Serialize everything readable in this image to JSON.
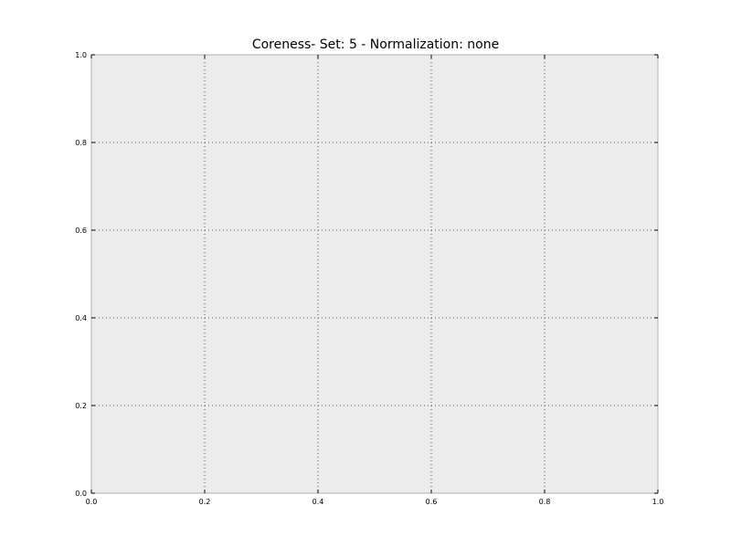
{
  "chart_data": {
    "type": "line",
    "title": "Coreness- Set: 5 - Normalization: none",
    "xlabel": "",
    "ylabel": "",
    "xlim": [
      0.0,
      1.0
    ],
    "ylim": [
      0.0,
      1.0
    ],
    "x_ticks": [
      0.0,
      0.2,
      0.4,
      0.6,
      0.8,
      1.0
    ],
    "y_ticks": [
      0.0,
      0.2,
      0.4,
      0.6,
      0.8,
      1.0
    ],
    "x_tick_labels": [
      "0.0",
      "0.2",
      "0.4",
      "0.6",
      "0.8",
      "1.0"
    ],
    "y_tick_labels": [
      "0.0",
      "0.2",
      "0.4",
      "0.6",
      "0.8",
      "1.0"
    ],
    "grid": true,
    "grid_style": "dotted",
    "legend": "none",
    "series": [],
    "colors": {
      "plot_background": "#ececec",
      "axes_border": "#b0b0b0",
      "grid": "#555555",
      "text": "#000000"
    }
  }
}
